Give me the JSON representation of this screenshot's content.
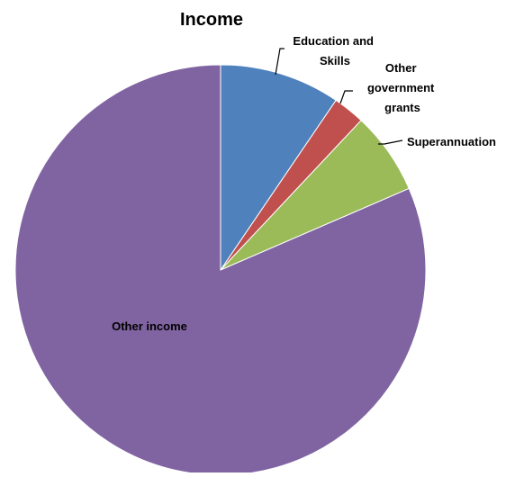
{
  "chart_data": {
    "type": "pie",
    "title": "Income",
    "slices": [
      {
        "label": "Education and Skills",
        "value": 9.5,
        "color": "#4F81BD"
      },
      {
        "label": "Other government grants",
        "value": 2.5,
        "color": "#C0504D"
      },
      {
        "label": "Superannuation",
        "value": 6.5,
        "color": "#9BBB59"
      },
      {
        "label": "Other income",
        "value": 81.5,
        "color": "#8064A2"
      }
    ],
    "start_angle": "12 o'clock",
    "direction": "clockwise",
    "slice_borders": "white",
    "legend": "none"
  }
}
